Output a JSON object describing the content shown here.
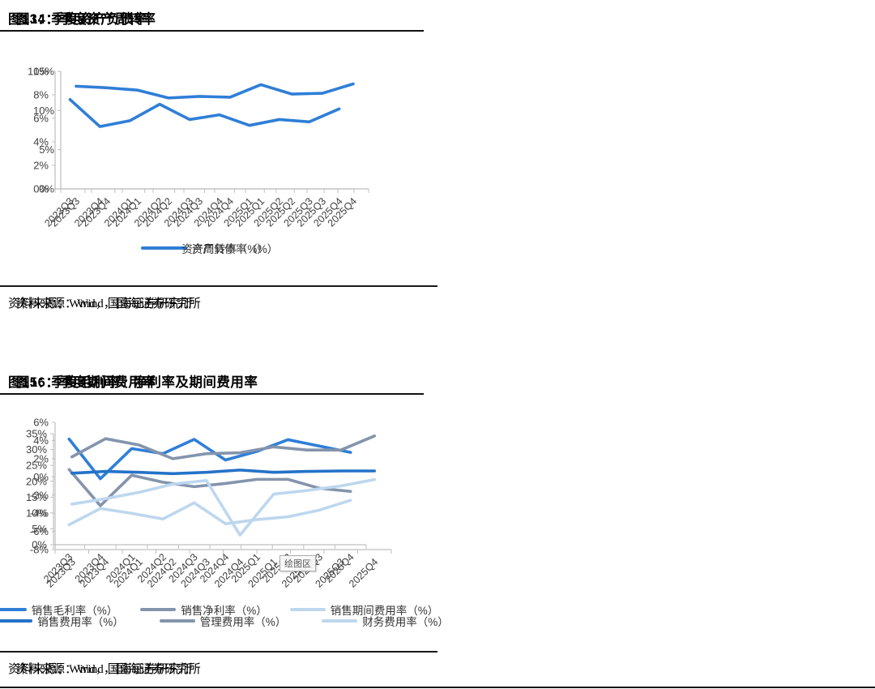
{
  "source": {
    "label": "资料来源：Wind，国海证券研究所"
  },
  "chart_data": [
    {
      "id": "fig13",
      "type": "line",
      "title": "图13：季度资产负债率",
      "categories": [
        "2023Q3",
        "2023Q4",
        "2024Q1",
        "2024Q2",
        "2024Q3",
        "2024Q4",
        "2025Q1",
        "2025Q2",
        "2025Q3",
        "2025Q4"
      ],
      "ylim": [
        0,
        15
      ],
      "yticks": [
        0,
        5,
        10,
        15
      ],
      "ytick_suffix": "%",
      "grid": false,
      "legend_position": "bottom",
      "series": [
        {
          "name": "资产负债率（%）",
          "color": "#2F7ED8",
          "values": [
            13.1,
            12.9,
            12.6,
            11.6,
            11.8,
            11.7,
            13.3,
            12.1,
            12.2,
            13.4
          ]
        }
      ]
    },
    {
      "id": "fig14",
      "type": "line",
      "title": "图14：季度资产周转率",
      "categories": [
        "2023Q3",
        "2023Q4",
        "2024Q1",
        "2024Q2",
        "2024Q3",
        "2024Q4",
        "2025Q1",
        "2025Q2",
        "2025Q3",
        "2025Q4"
      ],
      "ylim": [
        0,
        10
      ],
      "yticks": [
        0,
        2,
        4,
        6,
        8,
        10
      ],
      "ytick_suffix": "%",
      "grid": false,
      "legend_position": "bottom",
      "series": [
        {
          "name": "资产周转率（%）",
          "color": "#2F7ED8",
          "values": [
            7.6,
            5.3,
            5.8,
            7.2,
            5.9,
            6.3,
            5.4,
            5.9,
            5.7,
            6.8
          ]
        }
      ]
    },
    {
      "id": "fig15",
      "type": "line",
      "title": "图15：季度毛利率、净利率及期间费用率",
      "categories": [
        "2023Q3",
        "2023Q4",
        "2024Q1",
        "2024Q2",
        "2024Q3",
        "2024Q4",
        "2025Q1",
        "2025Q2",
        "2025Q3",
        "2025Q4"
      ],
      "ylim": [
        0,
        35
      ],
      "yticks": [
        0,
        5,
        10,
        15,
        20,
        25,
        30,
        35
      ],
      "ytick_suffix": "%",
      "grid": false,
      "legend_position": "bottom",
      "tooltip": "绘图区",
      "series": [
        {
          "name": "销售毛利率（%）",
          "color": "#2F7ED8",
          "values": [
            33.3,
            20.8,
            30.3,
            28.7,
            33.2,
            26.7,
            29.4,
            33.1,
            31.1,
            29.1
          ]
        },
        {
          "name": "销售净利率（%）",
          "color": "#8494AC",
          "values": [
            23.7,
            12.3,
            21.9,
            19.7,
            18.3,
            19.3,
            20.6,
            20.6,
            17.8,
            16.8
          ]
        },
        {
          "name": "销售期间费用率（%）",
          "color": "#BDD7EE",
          "values": [
            6.3,
            11.4,
            9.9,
            8.1,
            13.2,
            6.6,
            7.9,
            8.8,
            10.9,
            14.0
          ]
        }
      ]
    },
    {
      "id": "fig16",
      "type": "line",
      "title": "图16：季度期间费用率",
      "categories": [
        "2023Q3",
        "2023Q4",
        "2024Q1",
        "2024Q2",
        "2024Q3",
        "2024Q4",
        "2025Q1",
        "2025Q2",
        "2025Q3",
        "2025Q4"
      ],
      "ylim": [
        -8,
        6
      ],
      "yticks": [
        -8,
        -6,
        -4,
        -2,
        0,
        2,
        4,
        6
      ],
      "ytick_suffix": "%",
      "grid": false,
      "legend_position": "bottom",
      "series": [
        {
          "name": "销售费用率（%）",
          "color": "#2472C8",
          "values": [
            0.4,
            0.6,
            0.5,
            0.35,
            0.5,
            0.75,
            0.5,
            0.6,
            0.65,
            0.65
          ]
        },
        {
          "name": "管理费用率（%）",
          "color": "#8494AC",
          "values": [
            2.2,
            4.2,
            3.5,
            2.0,
            2.55,
            2.65,
            3.3,
            2.95,
            2.95,
            4.5
          ]
        },
        {
          "name": "财务费用率（%）",
          "color": "#BDD7EE",
          "values": [
            -3.0,
            -2.4,
            -1.7,
            -0.8,
            -0.4,
            -6.4,
            -1.9,
            -1.5,
            -1.0,
            -0.3
          ]
        }
      ]
    }
  ]
}
